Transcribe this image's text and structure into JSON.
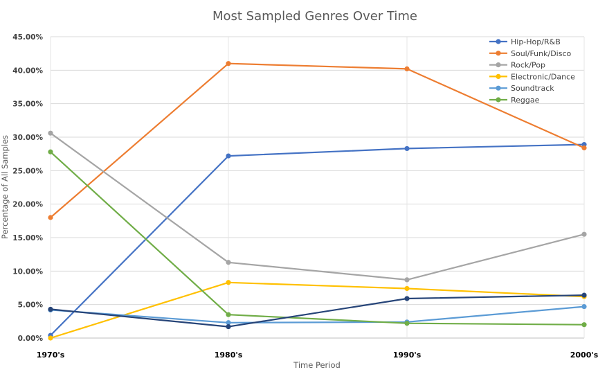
{
  "chart_data": {
    "type": "line",
    "title": "Most Sampled Genres Over Time",
    "xlabel": "Time Period",
    "ylabel": "Percentage of All Samples",
    "categories": [
      "1970's",
      "1980's",
      "1990's",
      "2000's"
    ],
    "ylim": [
      0,
      45
    ],
    "ytick_labels": [
      "0.00%",
      "5.00%",
      "10.00%",
      "15.00%",
      "20.00%",
      "25.00%",
      "30.00%",
      "35.00%",
      "40.00%",
      "45.00%"
    ],
    "grid": true,
    "legend_position": "top-right",
    "series": [
      {
        "name": "Hip-Hop/R&B",
        "color": "#4472c4",
        "values": [
          0.4,
          27.2,
          28.3,
          28.9
        ]
      },
      {
        "name": "Soul/Funk/Disco",
        "color": "#ed7d31",
        "values": [
          18.0,
          41.0,
          40.2,
          28.4
        ]
      },
      {
        "name": "Rock/Pop",
        "color": "#a5a5a5",
        "values": [
          30.6,
          11.3,
          8.7,
          15.5
        ]
      },
      {
        "name": "Electronic/Dance",
        "color": "#ffc000",
        "values": [
          0.0,
          8.3,
          7.4,
          6.2
        ]
      },
      {
        "name": "Soundtrack",
        "color": "#5b9bd5",
        "values": [
          4.2,
          2.3,
          2.4,
          4.7
        ]
      },
      {
        "name": "Reggae",
        "color": "#70ad47",
        "values": [
          27.8,
          3.5,
          2.2,
          2.0
        ]
      },
      {
        "color": "#264478",
        "values": [
          4.3,
          1.7,
          5.9,
          6.4
        ]
      }
    ]
  }
}
